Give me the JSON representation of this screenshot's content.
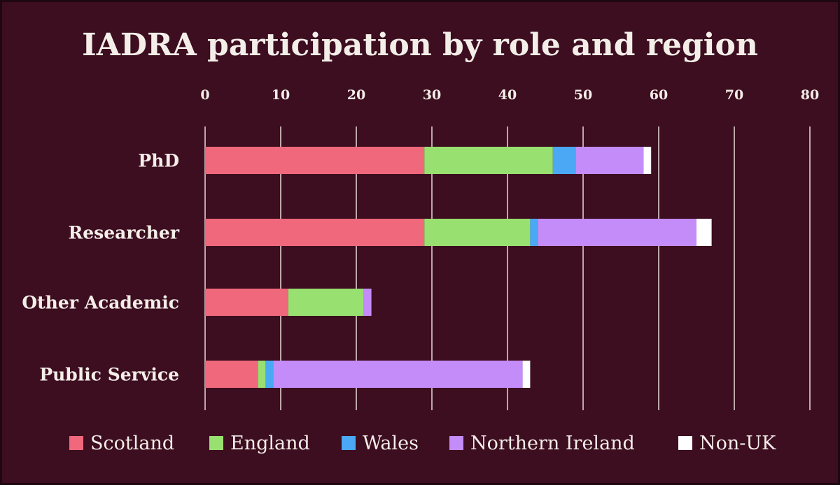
{
  "chart_data": {
    "type": "bar",
    "orientation": "horizontal",
    "stacked": true,
    "title": "IADRA participation by role and region",
    "xlabel": "",
    "ylabel": "",
    "categories": [
      "PhD",
      "Researcher",
      "Other Academic",
      "Public Service"
    ],
    "x_ticks": [
      0,
      10,
      20,
      30,
      40,
      50,
      60,
      70,
      80
    ],
    "xlim": [
      0,
      80
    ],
    "x_axis_position": "top",
    "grid": true,
    "legend_position": "bottom",
    "series": [
      {
        "name": "Scotland",
        "color": "#f0687c",
        "values": [
          29,
          29,
          11,
          7
        ]
      },
      {
        "name": "England",
        "color": "#98e070",
        "values": [
          17,
          14,
          10,
          1
        ]
      },
      {
        "name": "Wales",
        "color": "#4aa8f5",
        "values": [
          3,
          1,
          0,
          1
        ]
      },
      {
        "name": "Northern Ireland",
        "color": "#c48cf8",
        "values": [
          9,
          21,
          1,
          33
        ]
      },
      {
        "name": "Non-UK",
        "color": "#ffffff",
        "values": [
          1,
          2,
          0,
          1
        ]
      }
    ]
  }
}
